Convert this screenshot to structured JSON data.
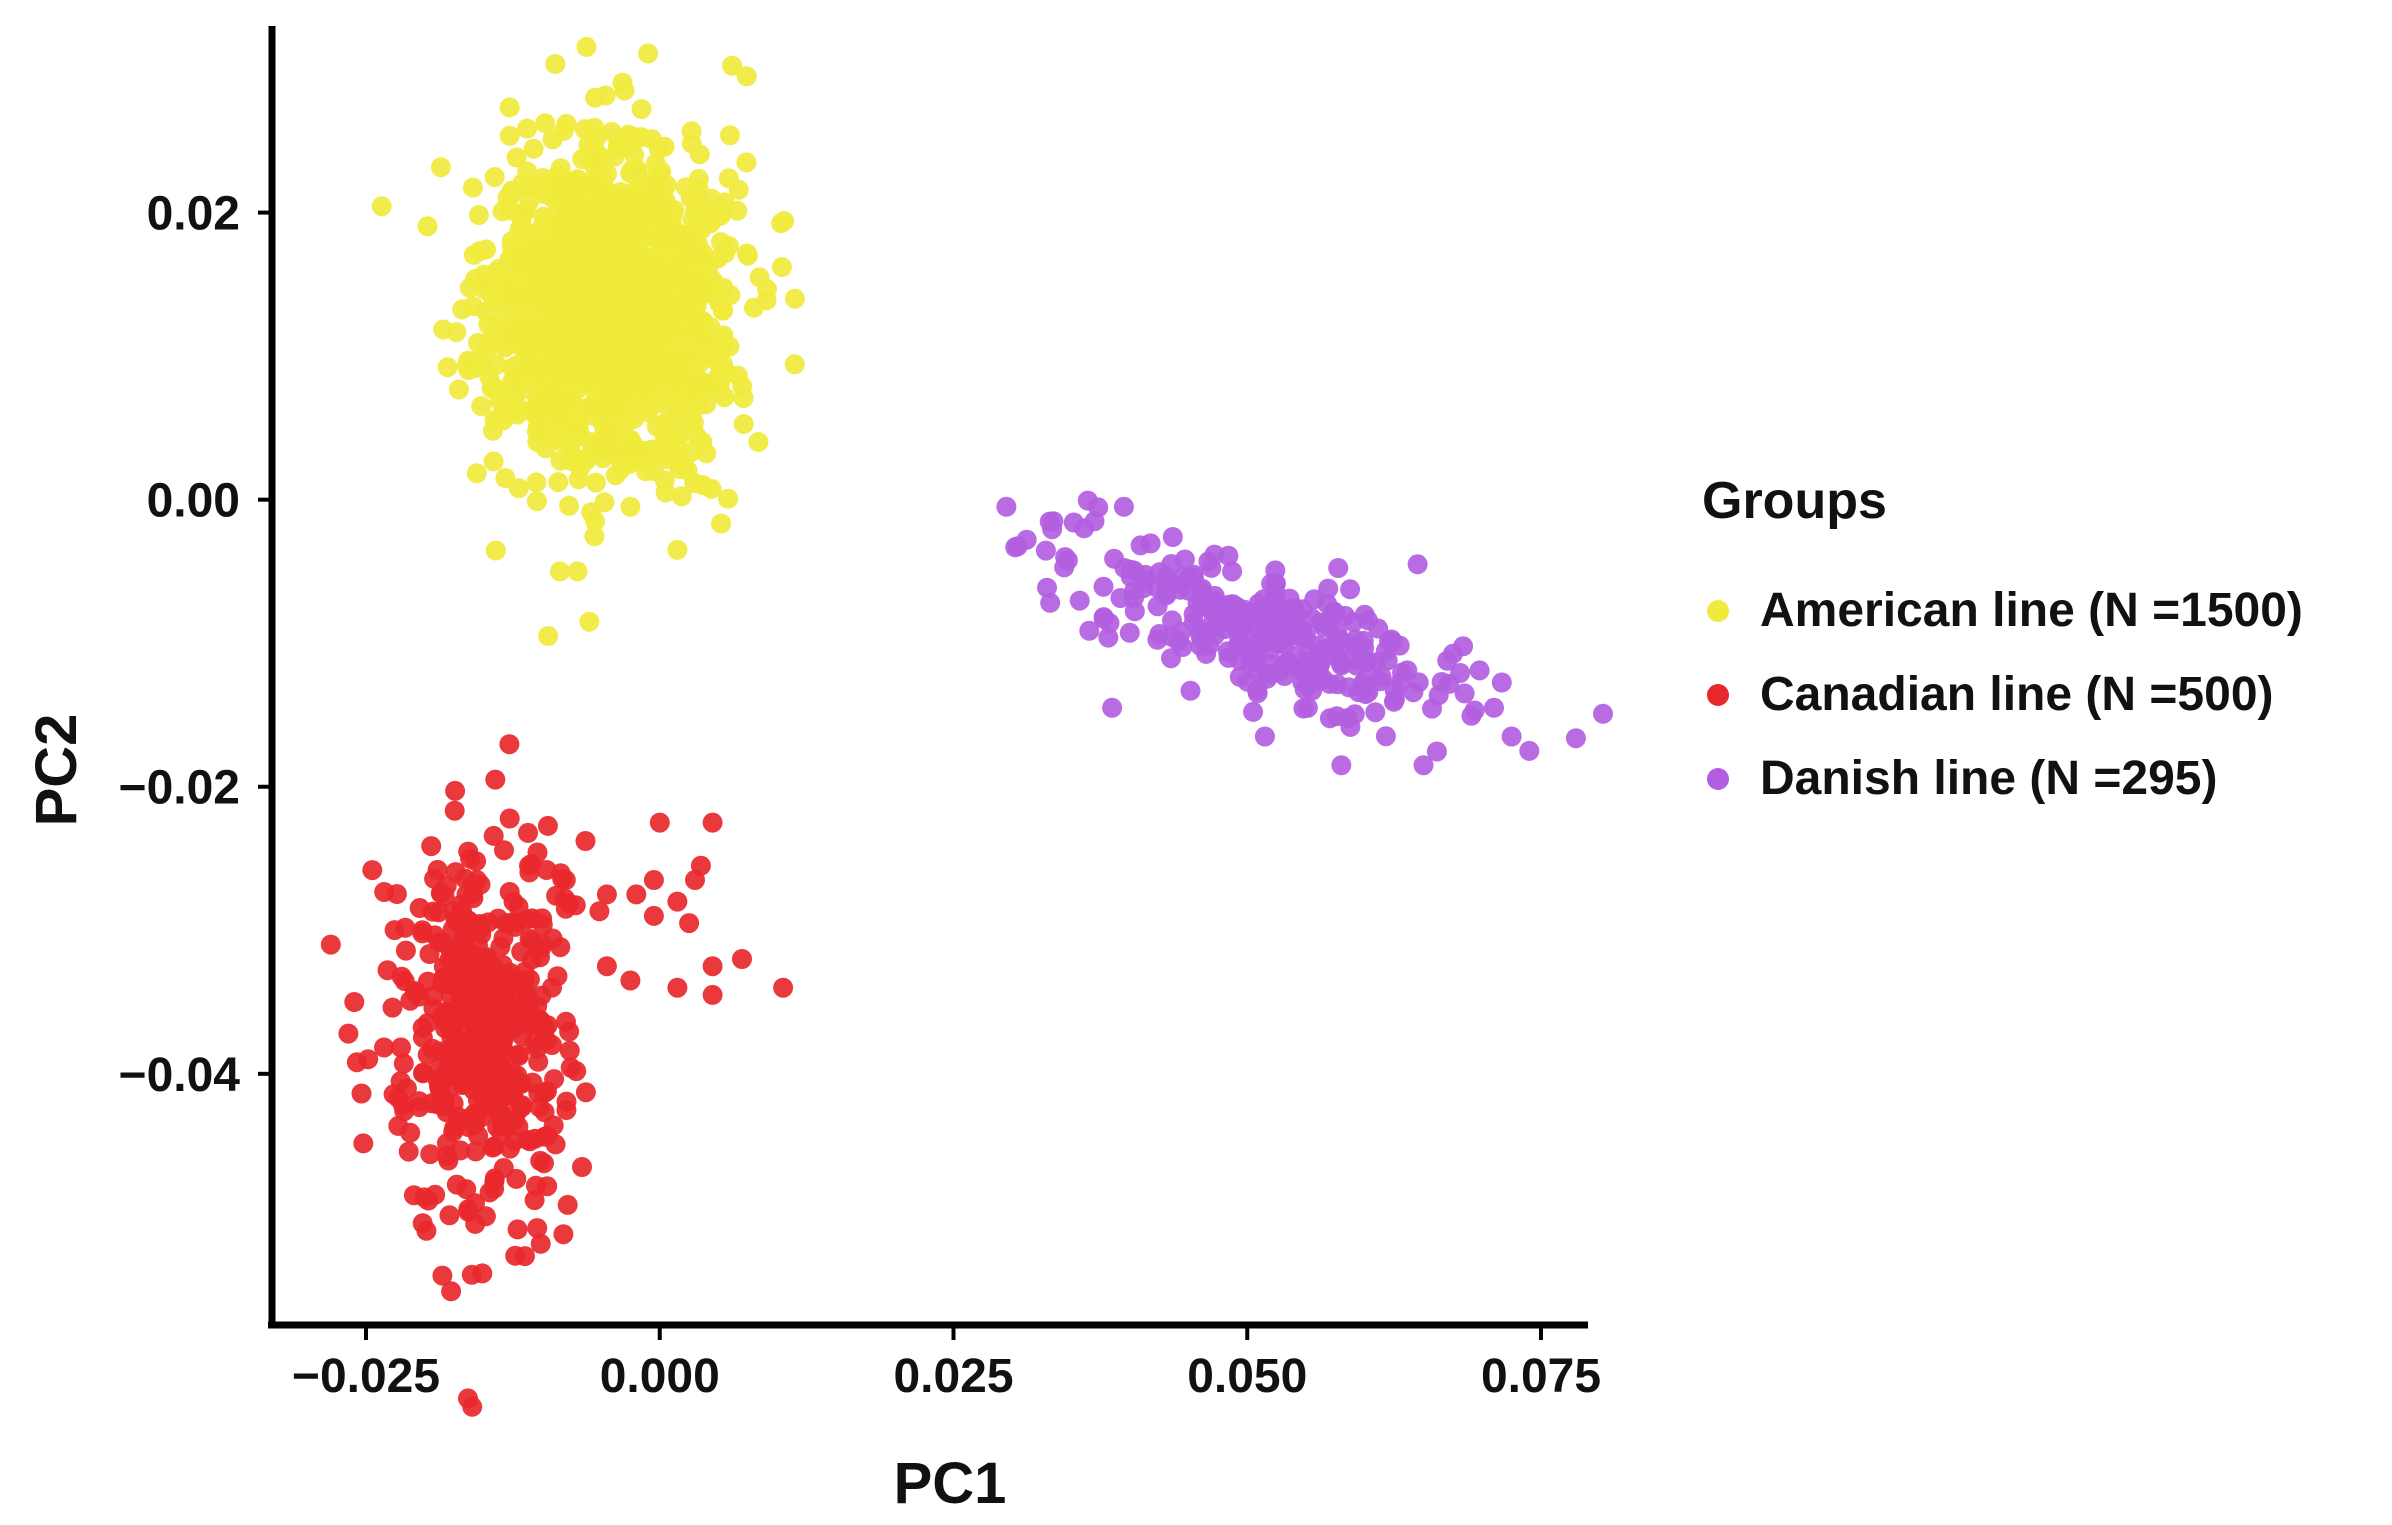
{
  "chart_data": {
    "type": "scatter",
    "title": "",
    "xlabel": "PC1",
    "ylabel": "PC2",
    "xlim": [
      -0.033,
      0.079
    ],
    "ylim": [
      -0.0575,
      0.033
    ],
    "x_ticks": [
      -0.025,
      0.0,
      0.025,
      0.05,
      0.075
    ],
    "x_tick_labels": [
      "−0.025",
      "0.000",
      "0.025",
      "0.050",
      "0.075"
    ],
    "y_ticks": [
      0.02,
      0.0,
      -0.02,
      -0.04
    ],
    "y_tick_labels": [
      "0.02",
      "0.00",
      "−0.02",
      "−0.04"
    ],
    "grid": false,
    "legend_title": "Groups",
    "legend_position": "right",
    "series": [
      {
        "name": "American line (N =1500)",
        "color": "#f0ea3c",
        "n": 1500,
        "center": [
          -0.0045,
          0.0135
        ],
        "spread": [
          0.0048,
          0.0055
        ],
        "correlation": 0.05,
        "outliers": [
          [
            -0.0055,
            0.028
          ],
          [
            -0.003,
            0.0285
          ],
          [
            0.0115,
            0.014
          ],
          [
            0.0085,
            0.0155
          ],
          [
            -0.0105,
            0.0012
          ],
          [
            -0.012,
            0.0008
          ],
          [
            -0.0085,
            -0.005
          ],
          [
            -0.007,
            -0.005
          ],
          [
            -0.0025,
            -0.0005
          ],
          [
            0.0005,
            0.0005
          ],
          [
            0.0015,
            -0.0035
          ],
          [
            -0.0095,
            -0.0095
          ],
          [
            -0.006,
            -0.0085
          ],
          [
            -0.0055,
            -0.0015
          ],
          [
            0.0075,
            0.017
          ]
        ]
      },
      {
        "name": "Canadian line (N =500)",
        "color": "#e8282c",
        "n": 500,
        "center": [
          -0.015,
          -0.0365
        ],
        "spread": [
          0.0035,
          0.0065
        ],
        "correlation": 0.05,
        "outliers": [
          [
            -0.028,
            -0.031
          ],
          [
            -0.026,
            -0.035
          ],
          [
            -0.0265,
            -0.0372
          ],
          [
            -0.014,
            -0.0195
          ],
          [
            -0.016,
            -0.054
          ],
          [
            0.0105,
            -0.034
          ],
          [
            0.007,
            -0.032
          ],
          [
            0.0045,
            -0.0325
          ],
          [
            0.0025,
            -0.0295
          ],
          [
            0.0035,
            -0.0255
          ],
          [
            -0.0005,
            -0.0265
          ],
          [
            -0.0005,
            -0.029
          ],
          [
            0.0015,
            -0.028
          ],
          [
            0.0045,
            -0.0225
          ],
          [
            0.003,
            -0.0265
          ],
          [
            0.0,
            -0.0225
          ],
          [
            -0.002,
            -0.0275
          ],
          [
            -0.0045,
            -0.0275
          ],
          [
            -0.0045,
            -0.0325
          ],
          [
            -0.0025,
            -0.0335
          ],
          [
            0.0015,
            -0.034
          ],
          [
            0.0045,
            -0.0345
          ],
          [
            -0.008,
            -0.0265
          ],
          [
            -0.008,
            -0.0285
          ]
        ]
      },
      {
        "name": "Danish line (N =295)",
        "color": "#b25ee0",
        "n": 295,
        "center": [
          0.052,
          -0.0095
        ],
        "spread": [
          0.0085,
          0.0032
        ],
        "correlation": -0.72,
        "outliers": [
          [
            0.0295,
            -0.0005
          ],
          [
            0.0335,
            -0.0015
          ],
          [
            0.0345,
            -0.004
          ],
          [
            0.037,
            -0.0015
          ],
          [
            0.0395,
            -0.0005
          ],
          [
            0.0725,
            -0.0165
          ],
          [
            0.074,
            -0.0175
          ],
          [
            0.071,
            -0.0145
          ],
          [
            0.065,
            -0.0185
          ],
          [
            0.058,
            -0.0185
          ],
          [
            0.0385,
            -0.0145
          ],
          [
            0.0645,
            -0.0045
          ],
          [
            0.0685,
            -0.0135
          ],
          [
            0.0515,
            -0.0165
          ]
        ]
      }
    ]
  }
}
